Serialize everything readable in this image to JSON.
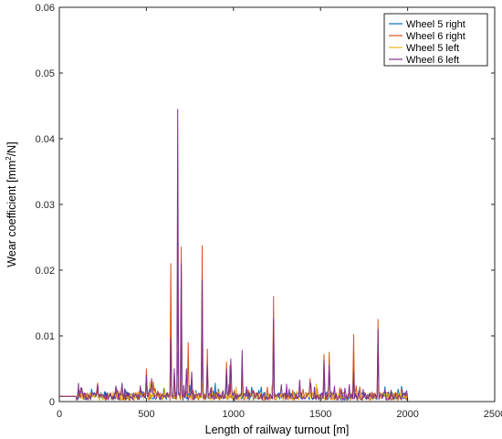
{
  "chart_data": {
    "type": "line",
    "xlabel": "Length of railway turnout [m]",
    "ylabel": "Wear coefficient   [mm",
    "ylabel_sup": "2",
    "ylabel_tail": "/N]",
    "xlim": [
      0,
      2500
    ],
    "ylim": [
      0,
      0.06
    ],
    "xticks": [
      0,
      500,
      1000,
      1500,
      2000,
      2500
    ],
    "yticks": [
      0,
      0.01,
      0.02,
      0.03,
      0.04,
      0.05,
      0.06
    ],
    "xtick_labels": [
      "0",
      "500",
      "1000",
      "1500",
      "2000",
      "2500"
    ],
    "ytick_labels": [
      "0",
      "0.01",
      "0.02",
      "0.03",
      "0.04",
      "0.05",
      "0.06"
    ],
    "grid": false,
    "legend_position": "top-right",
    "baseline": 0.0008,
    "series": [
      {
        "name": "Wheel 5 right",
        "color": "#0072BD",
        "peaks": [
          [
            220,
            0.002
          ],
          [
            500,
            0.003
          ],
          [
            640,
            0.012
          ],
          [
            680,
            0.02
          ],
          [
            700,
            0.015
          ],
          [
            820,
            0.012
          ],
          [
            850,
            0.005
          ],
          [
            960,
            0.004
          ],
          [
            1230,
            0.01
          ],
          [
            1520,
            0.005
          ],
          [
            1550,
            0.006
          ],
          [
            1690,
            0.006
          ],
          [
            1830,
            0.009
          ]
        ]
      },
      {
        "name": "Wheel 6 right",
        "color": "#D95319",
        "peaks": [
          [
            130,
            0.002
          ],
          [
            220,
            0.0028
          ],
          [
            360,
            0.0025
          ],
          [
            500,
            0.005
          ],
          [
            540,
            0.003
          ],
          [
            640,
            0.021
          ],
          [
            660,
            0.004
          ],
          [
            680,
            0.0075
          ],
          [
            700,
            0.0235
          ],
          [
            740,
            0.009
          ],
          [
            760,
            0.004
          ],
          [
            820,
            0.0237
          ],
          [
            850,
            0.008
          ],
          [
            960,
            0.006
          ],
          [
            980,
            0.0055
          ],
          [
            1050,
            0.0045
          ],
          [
            1230,
            0.016
          ],
          [
            1380,
            0.003
          ],
          [
            1440,
            0.0035
          ],
          [
            1520,
            0.0072
          ],
          [
            1550,
            0.0075
          ],
          [
            1690,
            0.0102
          ],
          [
            1830,
            0.0125
          ]
        ]
      },
      {
        "name": "Wheel 5 left",
        "color": "#EDB120",
        "peaks": [
          [
            130,
            0.0015
          ],
          [
            220,
            0.0018
          ],
          [
            500,
            0.004
          ],
          [
            520,
            0.003
          ],
          [
            640,
            0.004
          ],
          [
            680,
            0.004
          ],
          [
            700,
            0.003
          ],
          [
            820,
            0.003
          ],
          [
            1230,
            0.003
          ],
          [
            1550,
            0.0025
          ],
          [
            1830,
            0.0025
          ]
        ]
      },
      {
        "name": "Wheel 6 left",
        "color": "#7E2F8E",
        "peaks": [
          [
            130,
            0.0018
          ],
          [
            220,
            0.0026
          ],
          [
            360,
            0.0028
          ],
          [
            500,
            0.004
          ],
          [
            530,
            0.0035
          ],
          [
            640,
            0.0095
          ],
          [
            660,
            0.005
          ],
          [
            680,
            0.0445
          ],
          [
            700,
            0.021
          ],
          [
            730,
            0.005
          ],
          [
            760,
            0.0045
          ],
          [
            820,
            0.0185
          ],
          [
            850,
            0.0055
          ],
          [
            960,
            0.005
          ],
          [
            985,
            0.0065
          ],
          [
            1050,
            0.0078
          ],
          [
            1230,
            0.0125
          ],
          [
            1380,
            0.0033
          ],
          [
            1440,
            0.003
          ],
          [
            1520,
            0.0062
          ],
          [
            1550,
            0.0055
          ],
          [
            1690,
            0.0045
          ],
          [
            1830,
            0.011
          ]
        ]
      }
    ]
  }
}
